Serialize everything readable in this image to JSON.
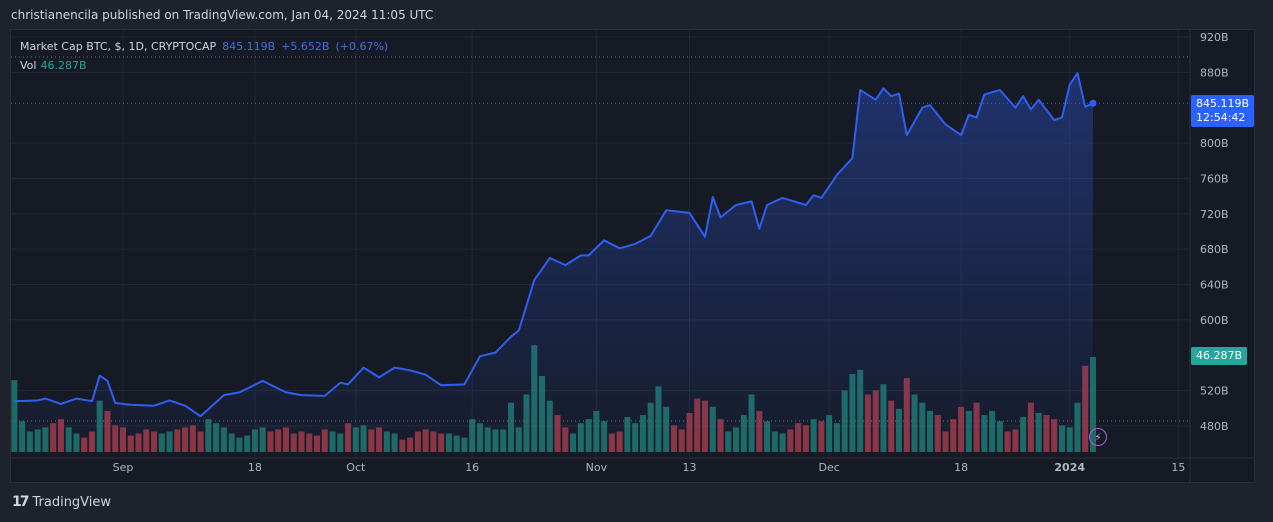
{
  "header": {
    "publish_line": "christianencila published on TradingView.com, Jan 04, 2024 11:05 UTC"
  },
  "legend": {
    "symbol": "Market Cap BTC, $, 1D, CRYPTOCAP",
    "last": "845.119B",
    "change": "+5.652B",
    "change_pct": "(+0.67%)",
    "vol_label": "Vol",
    "vol_value": "46.287B"
  },
  "badges": {
    "price": "845.119B",
    "countdown": "12:54:42",
    "volume": "46.287B"
  },
  "footer": {
    "logo_text": "TradingView",
    "logo_mark": "17"
  },
  "colors": {
    "line": "#2f5ff0",
    "up": "#1f7a6d",
    "down": "#a33a44",
    "price_badge": "#2962ff",
    "vol_badge": "#26a69a",
    "background": "#161a25"
  },
  "icons": {
    "bolt": "lightning-icon"
  },
  "chart_data": {
    "type": "line",
    "title": "Market Cap BTC, $, 1D, CRYPTOCAP",
    "ylim": [
      460,
      930
    ],
    "y_ticks": [
      "920B",
      "880B",
      "800B",
      "760B",
      "720B",
      "680B",
      "640B",
      "600B",
      "520B",
      "480B"
    ],
    "y_tick_values": [
      920,
      880,
      800,
      760,
      720,
      680,
      640,
      600,
      520,
      480
    ],
    "x_ticks": [
      {
        "label": "Sep",
        "date": "2023-09-01"
      },
      {
        "label": "18",
        "date": "2023-09-18"
      },
      {
        "label": "Oct",
        "date": "2023-10-01"
      },
      {
        "label": "16",
        "date": "2023-10-16"
      },
      {
        "label": "Nov",
        "date": "2023-11-01"
      },
      {
        "label": "13",
        "date": "2023-11-13"
      },
      {
        "label": "Dec",
        "date": "2023-12-01"
      },
      {
        "label": "18",
        "date": "2023-12-18"
      },
      {
        "label": "2024",
        "date": "2024-01-01"
      },
      {
        "label": "15",
        "date": "2024-01-15"
      }
    ],
    "series": [
      {
        "points": [
          [
            "2023-08-18",
            508
          ],
          [
            "2023-08-21",
            509
          ],
          [
            "2023-08-22",
            511
          ],
          [
            "2023-08-24",
            505
          ],
          [
            "2023-08-26",
            511
          ],
          [
            "2023-08-28",
            508
          ],
          [
            "2023-08-29",
            537
          ],
          [
            "2023-08-30",
            531
          ],
          [
            "2023-08-31",
            506
          ],
          [
            "2023-09-02",
            504
          ],
          [
            "2023-09-05",
            503
          ],
          [
            "2023-09-07",
            509
          ],
          [
            "2023-09-09",
            503
          ],
          [
            "2023-09-11",
            491
          ],
          [
            "2023-09-14",
            515
          ],
          [
            "2023-09-16",
            518
          ],
          [
            "2023-09-19",
            531
          ],
          [
            "2023-09-22",
            518
          ],
          [
            "2023-09-24",
            515
          ],
          [
            "2023-09-27",
            514
          ],
          [
            "2023-09-29",
            529
          ],
          [
            "2023-09-30",
            527
          ],
          [
            "2023-10-02",
            546
          ],
          [
            "2023-10-04",
            535
          ],
          [
            "2023-10-06",
            546
          ],
          [
            "2023-10-08",
            543
          ],
          [
            "2023-10-10",
            538
          ],
          [
            "2023-10-12",
            526
          ],
          [
            "2023-10-15",
            527
          ],
          [
            "2023-10-17",
            559
          ],
          [
            "2023-10-19",
            563
          ],
          [
            "2023-10-21",
            581
          ],
          [
            "2023-10-22",
            588
          ],
          [
            "2023-10-24",
            645
          ],
          [
            "2023-10-26",
            670
          ],
          [
            "2023-10-28",
            662
          ],
          [
            "2023-10-30",
            673
          ],
          [
            "2023-10-31",
            673
          ],
          [
            "2023-11-02",
            690
          ],
          [
            "2023-11-04",
            681
          ],
          [
            "2023-11-06",
            686
          ],
          [
            "2023-11-08",
            695
          ],
          [
            "2023-11-10",
            724
          ],
          [
            "2023-11-13",
            721
          ],
          [
            "2023-11-15",
            694
          ],
          [
            "2023-11-16",
            739
          ],
          [
            "2023-11-17",
            716
          ],
          [
            "2023-11-19",
            730
          ],
          [
            "2023-11-21",
            734
          ],
          [
            "2023-11-22",
            703
          ],
          [
            "2023-11-23",
            730
          ],
          [
            "2023-11-25",
            738
          ],
          [
            "2023-11-28",
            730
          ],
          [
            "2023-11-29",
            741
          ],
          [
            "2023-11-30",
            738
          ],
          [
            "2023-12-02",
            764
          ],
          [
            "2023-12-04",
            783
          ],
          [
            "2023-12-05",
            860
          ],
          [
            "2023-12-07",
            849
          ],
          [
            "2023-12-08",
            862
          ],
          [
            "2023-12-09",
            853
          ],
          [
            "2023-12-10",
            856
          ],
          [
            "2023-12-11",
            809
          ],
          [
            "2023-12-13",
            840
          ],
          [
            "2023-12-14",
            843
          ],
          [
            "2023-12-16",
            821
          ],
          [
            "2023-12-18",
            809
          ],
          [
            "2023-12-19",
            832
          ],
          [
            "2023-12-20",
            829
          ],
          [
            "2023-12-21",
            855
          ],
          [
            "2023-12-23",
            860
          ],
          [
            "2023-12-25",
            840
          ],
          [
            "2023-12-26",
            853
          ],
          [
            "2023-12-27",
            838
          ],
          [
            "2023-12-28",
            849
          ],
          [
            "2023-12-30",
            826
          ],
          [
            "2023-12-31",
            829
          ],
          [
            "2024-01-01",
            866
          ],
          [
            "2024-01-02",
            879
          ],
          [
            "2024-01-03",
            841
          ],
          [
            "2024-01-04",
            845.119
          ]
        ]
      }
    ],
    "volume": {
      "start_date": "2023-08-18",
      "unit": "B",
      "values": [
        35,
        15,
        10,
        11,
        12,
        14,
        16,
        12,
        9,
        7,
        10,
        25,
        20,
        13,
        12,
        8,
        9,
        11,
        10,
        9,
        10,
        11,
        12,
        13,
        10,
        16,
        14,
        12,
        9,
        7,
        8,
        11,
        12,
        10,
        11,
        12,
        9,
        10,
        9,
        8,
        11,
        10,
        9,
        14,
        12,
        13,
        11,
        12,
        10,
        9,
        6,
        7,
        10,
        11,
        10,
        9,
        9,
        8,
        7,
        16,
        14,
        12,
        11,
        11,
        24,
        12,
        28,
        52,
        37,
        25,
        18,
        12,
        9,
        14,
        16,
        20,
        15,
        9,
        10,
        17,
        14,
        18,
        24,
        32,
        22,
        13,
        11,
        19,
        26,
        25,
        22,
        16,
        10,
        12,
        18,
        28,
        20,
        15,
        10,
        9,
        11,
        14,
        13,
        16,
        15,
        18,
        14,
        30,
        38,
        40,
        28,
        30,
        33,
        25,
        21,
        36,
        28,
        24,
        20,
        18,
        10,
        16,
        22,
        20,
        24,
        18,
        20,
        15,
        10,
        11,
        17,
        24,
        19,
        18,
        16,
        13,
        12,
        24,
        42,
        46.287
      ]
    }
  }
}
